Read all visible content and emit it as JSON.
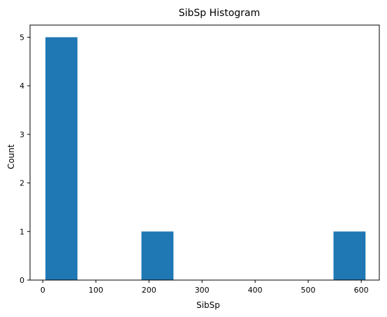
{
  "chart_data": {
    "type": "bar",
    "title": "SibSp Histogram",
    "xlabel": "SibSp",
    "ylabel": "Count",
    "xlim": [
      -24,
      634
    ],
    "ylim": [
      0,
      5.25
    ],
    "bins": [
      {
        "x0": 5,
        "x1": 65.3,
        "count": 5
      },
      {
        "x0": 65.3,
        "x1": 125.6,
        "count": 0
      },
      {
        "x0": 125.6,
        "x1": 185.9,
        "count": 0
      },
      {
        "x0": 185.9,
        "x1": 246.2,
        "count": 1
      },
      {
        "x0": 246.2,
        "x1": 306.5,
        "count": 0
      },
      {
        "x0": 306.5,
        "x1": 366.8,
        "count": 0
      },
      {
        "x0": 366.8,
        "x1": 427.1,
        "count": 0
      },
      {
        "x0": 427.1,
        "x1": 487.4,
        "count": 0
      },
      {
        "x0": 487.4,
        "x1": 547.7,
        "count": 0
      },
      {
        "x0": 547.7,
        "x1": 608,
        "count": 1
      }
    ],
    "xticks": [
      {
        "value": 0,
        "label": "0"
      },
      {
        "value": 100,
        "label": "100"
      },
      {
        "value": 200,
        "label": "200"
      },
      {
        "value": 300,
        "label": "300"
      },
      {
        "value": 400,
        "label": "400"
      },
      {
        "value": 500,
        "label": "500"
      },
      {
        "value": 600,
        "label": "600"
      }
    ],
    "yticks": [
      {
        "value": 0,
        "label": "0"
      },
      {
        "value": 1,
        "label": "1"
      },
      {
        "value": 2,
        "label": "2"
      },
      {
        "value": 3,
        "label": "3"
      },
      {
        "value": 4,
        "label": "4"
      },
      {
        "value": 5,
        "label": "5"
      }
    ],
    "grid": false,
    "colors": {
      "bar": "#1f77b4",
      "axis": "#000000"
    }
  }
}
